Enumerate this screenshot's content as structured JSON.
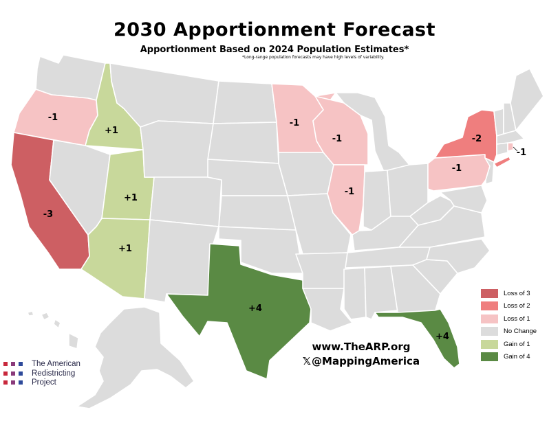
{
  "title": "2030 Apportionment Forecast",
  "subtitle": "Apportionment Based on 2024 Population Estimates*",
  "footnote": "*Long-range population forecasts may have high levels of variability.",
  "colors": {
    "no_change": "#dcdcdc",
    "loss_3": "#cd5f63",
    "loss_2": "#ef7e7e",
    "loss_1": "#f6c3c4",
    "gain_1": "#c8d89b",
    "gain_4": "#5a8a44",
    "border": "#ffffff"
  },
  "states": [
    {
      "name": "Washington",
      "change": 0
    },
    {
      "name": "Oregon",
      "change": -1,
      "label": "-1"
    },
    {
      "name": "California",
      "change": -3,
      "label": "-3"
    },
    {
      "name": "Idaho",
      "change": 1,
      "label": "+1"
    },
    {
      "name": "Nevada",
      "change": 0
    },
    {
      "name": "Utah",
      "change": 1,
      "label": "+1"
    },
    {
      "name": "Arizona",
      "change": 1,
      "label": "+1"
    },
    {
      "name": "Texas",
      "change": 4,
      "label": "+4"
    },
    {
      "name": "Minnesota",
      "change": -1,
      "label": "-1"
    },
    {
      "name": "Wisconsin",
      "change": -1,
      "label": "-1"
    },
    {
      "name": "Illinois",
      "change": -1,
      "label": "-1"
    },
    {
      "name": "New York",
      "change": -2,
      "label": "-2"
    },
    {
      "name": "Pennsylvania",
      "change": -1,
      "label": "-1"
    },
    {
      "name": "Rhode Island",
      "change": -1,
      "label": "-1"
    },
    {
      "name": "Florida",
      "change": 4,
      "label": "+4"
    }
  ],
  "legend": [
    {
      "label": "Loss of 3",
      "color": "#cd5f63"
    },
    {
      "label": "Loss of 2",
      "color": "#ef7e7e"
    },
    {
      "label": "Loss of 1",
      "color": "#f6c3c4"
    },
    {
      "label": "No Change",
      "color": "#dcdcdc"
    },
    {
      "label": "Gain of 1",
      "color": "#c8d89b"
    },
    {
      "label": "Gain of 4",
      "color": "#5a8a44"
    }
  ],
  "credits": {
    "website": "www.TheARP.org",
    "x_icon": "x-logo-icon",
    "handle": "@MappingAmerica"
  },
  "logo": {
    "line1": "The American",
    "line2": "Redistricting",
    "line3": "Project",
    "dot_colors": [
      "#c8283c",
      "#8a3a7a",
      "#2e4a9a"
    ]
  }
}
